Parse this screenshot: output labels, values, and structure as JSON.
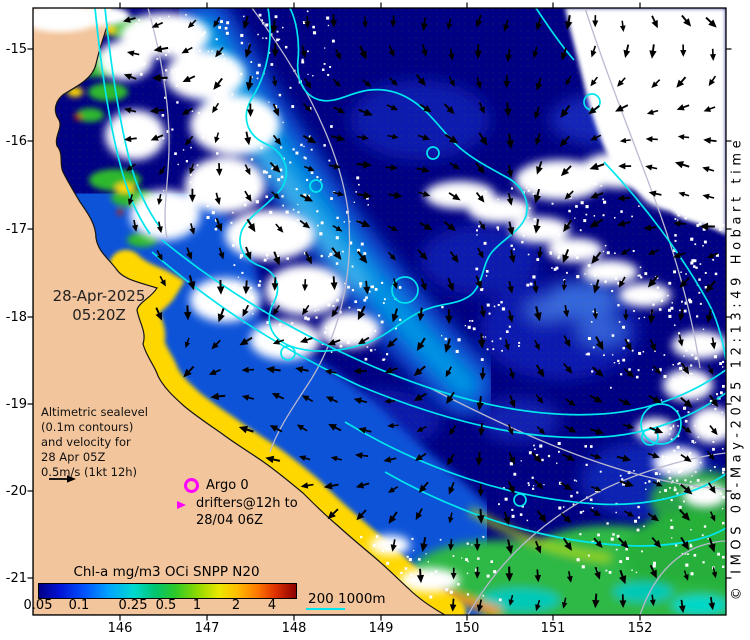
{
  "axes": {
    "lat_labels": [
      "-15",
      "-16",
      "-17",
      "-18",
      "-19",
      "-20",
      "-21"
    ],
    "lon_labels": [
      "146",
      "147",
      "148",
      "149",
      "150",
      "151",
      "152"
    ]
  },
  "overlay": {
    "timestamp_line1": "28-Apr-2025",
    "timestamp_line2": "05:20Z",
    "annotation_lines": [
      "Altimetric sealevel",
      "(0.1m contours)",
      "and velocity for",
      "28 Apr 05Z",
      "0.5m/s (1kt 12h)"
    ],
    "argo_label": "Argo 0",
    "drifters_line1": "drifters@12h to",
    "drifters_line2": "28/04 06Z",
    "depth_legend_label": "200 1000m",
    "credit": "© IMOS 08-May-2025 12:13:49 Hobart time"
  },
  "colorbar": {
    "title": "Chl-a mg/m3 OCi SNPP N20",
    "tick_labels": [
      "0.05",
      "0.1",
      "0.25",
      "0.5",
      "1",
      "2",
      "4"
    ]
  },
  "colors": {
    "land": "#f2c59c",
    "ocean_deep": "#000084",
    "sealevel_contour": "#00e5ee",
    "secondary_contour": "#b9b9d0",
    "vector_arrow": "#000000",
    "marker_magenta": "#ff00ff",
    "cloud": "#ffffff"
  }
}
